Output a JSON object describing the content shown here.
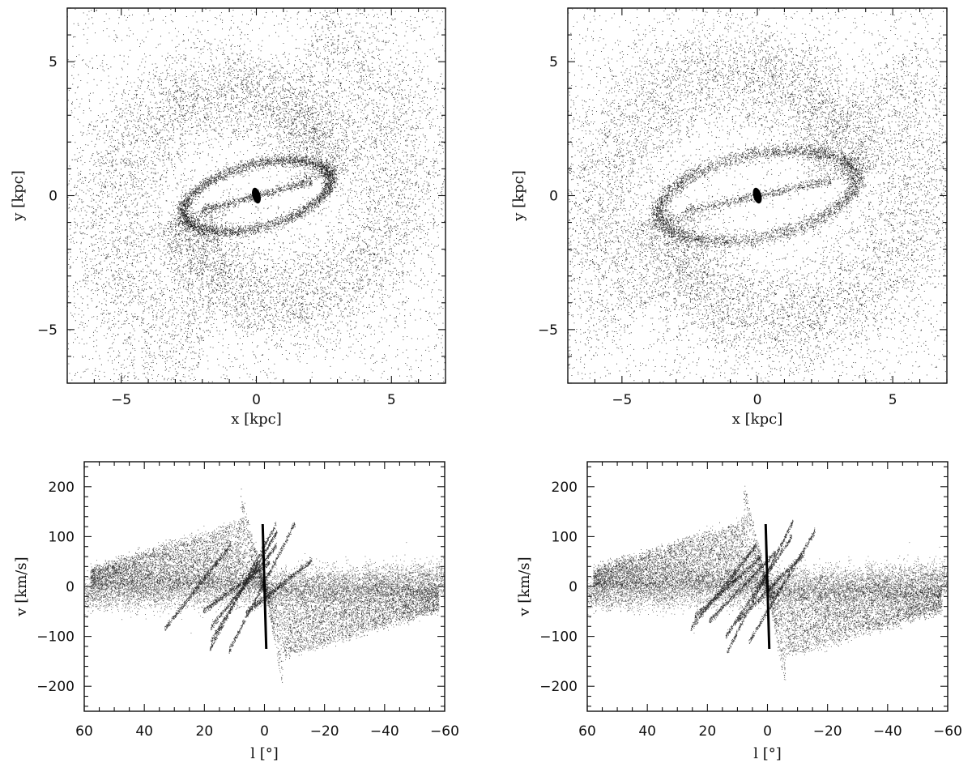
{
  "figure": {
    "panels": [
      {
        "id": "top-left"
      },
      {
        "id": "top-right"
      },
      {
        "id": "bottom-left"
      },
      {
        "id": "bottom-right"
      }
    ]
  },
  "chart_data": [
    {
      "type": "scatter",
      "panel": "top-left",
      "title": "",
      "xlabel": "x [kpc]",
      "ylabel": "y [kpc]",
      "xlim": [
        -7,
        7
      ],
      "ylim": [
        -7,
        7
      ],
      "xticks": [
        -5,
        0,
        5
      ],
      "yticks": [
        -5,
        0,
        5
      ],
      "xtick_labels": [
        "−5",
        "0",
        "5"
      ],
      "ytick_labels": [
        "−5",
        "0",
        "5"
      ],
      "grid": false,
      "legend": "none",
      "features": {
        "bar_half_length_kpc": 2.8,
        "bar_angle_deg": 15,
        "arm_outer_radius_kpc": 6.5,
        "arm_winding": 1.05
      }
    },
    {
      "type": "scatter",
      "panel": "top-right",
      "title": "",
      "xlabel": "x [kpc]",
      "ylabel": "y [kpc]",
      "xlim": [
        -7,
        7
      ],
      "ylim": [
        -7,
        7
      ],
      "xticks": [
        -5,
        0,
        5
      ],
      "yticks": [
        -5,
        0,
        5
      ],
      "xtick_labels": [
        "−5",
        "0",
        "5"
      ],
      "ytick_labels": [
        "−5",
        "0",
        "5"
      ],
      "grid": false,
      "legend": "none",
      "features": {
        "bar_half_length_kpc": 3.7,
        "bar_angle_deg": 12,
        "arm_outer_radius_kpc": 6.6,
        "arm_winding": 0.95
      }
    },
    {
      "type": "scatter",
      "panel": "bottom-left",
      "title": "",
      "xlabel": "l [°]",
      "ylabel": "v [km/s]",
      "xlim": [
        60,
        -60
      ],
      "ylim": [
        -250,
        250
      ],
      "xticks": [
        60,
        40,
        20,
        0,
        -20,
        -40,
        -60
      ],
      "yticks": [
        200,
        100,
        0,
        -100,
        -200
      ],
      "xtick_labels": [
        "60",
        "40",
        "20",
        "0",
        "−20",
        "−40",
        "−60"
      ],
      "ytick_labels": [
        "200",
        "100",
        "0",
        "−100",
        "−200"
      ],
      "grid": false,
      "legend": "none",
      "features": {
        "peak_positive_v": 195,
        "peak_negative_v": -200,
        "central_spike_v": [
          -125,
          125
        ]
      }
    },
    {
      "type": "scatter",
      "panel": "bottom-right",
      "title": "",
      "xlabel": "l [°]",
      "ylabel": "v [km/s]",
      "xlim": [
        60,
        -60
      ],
      "ylim": [
        -250,
        250
      ],
      "xticks": [
        60,
        40,
        20,
        0,
        -20,
        -40,
        -60
      ],
      "yticks": [
        200,
        100,
        0,
        -100,
        -200
      ],
      "xtick_labels": [
        "60",
        "40",
        "20",
        "0",
        "−20",
        "−40",
        "−60"
      ],
      "ytick_labels": [
        "200",
        "100",
        "0",
        "−100",
        "−200"
      ],
      "grid": false,
      "legend": "none",
      "features": {
        "peak_positive_v": 210,
        "peak_negative_v": -210,
        "central_spike_v": [
          -125,
          125
        ]
      }
    }
  ]
}
